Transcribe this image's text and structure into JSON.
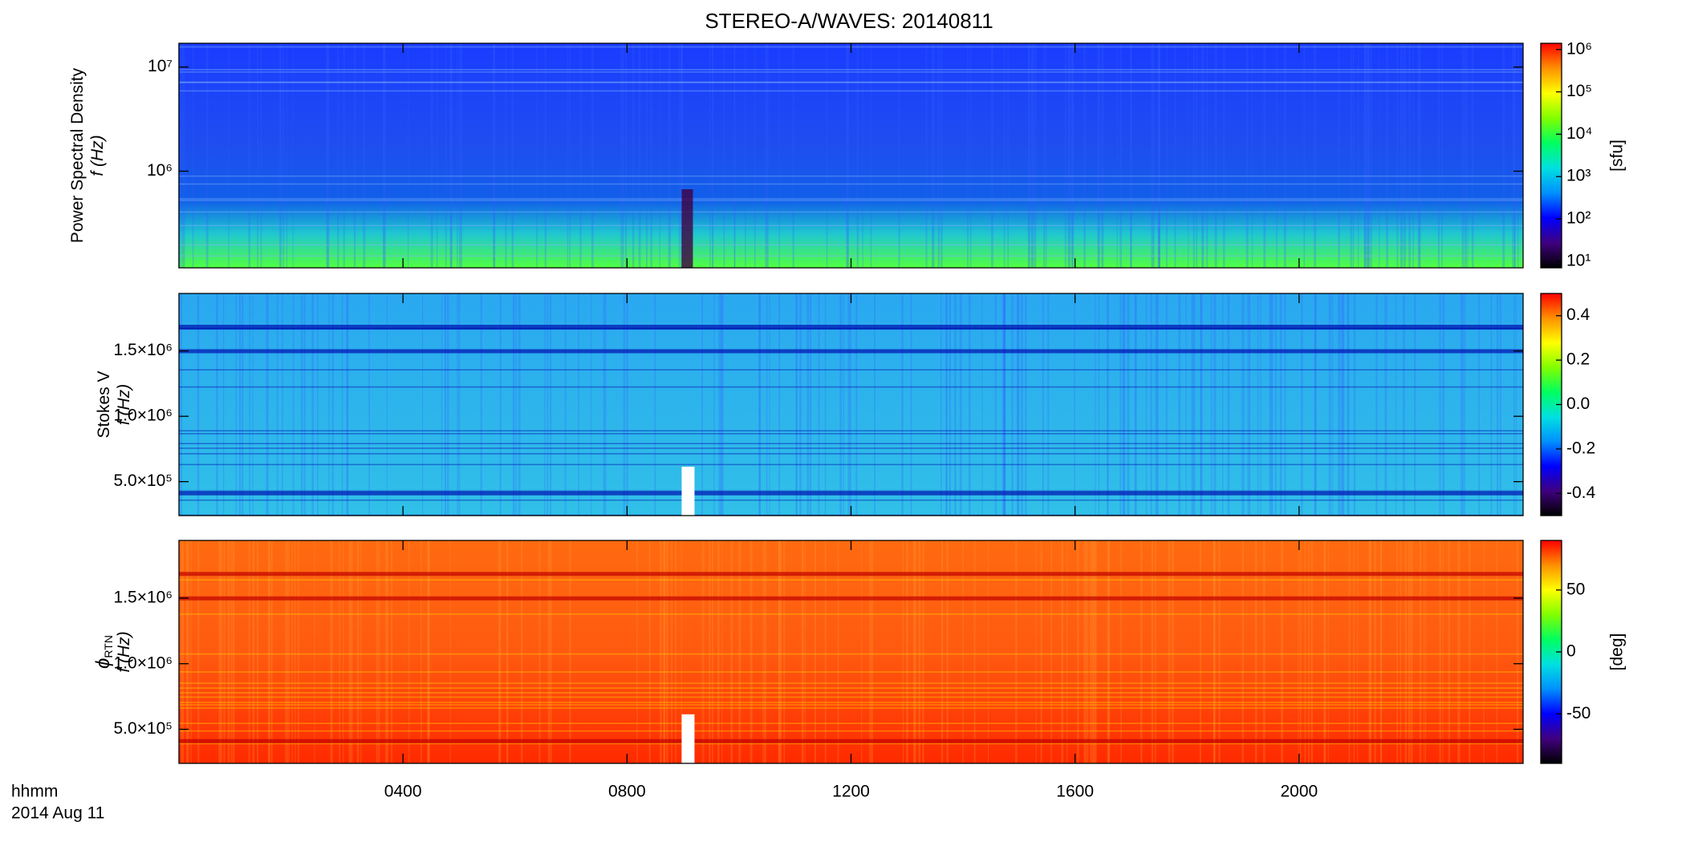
{
  "title": "STEREO-A/WAVES: 20140811",
  "x_axis": {
    "xlim": [
      0,
      24
    ],
    "xticks": [
      {
        "value": 4,
        "label": "0400"
      },
      {
        "value": 8,
        "label": "0800"
      },
      {
        "value": 12,
        "label": "1200"
      },
      {
        "value": 16,
        "label": "1600"
      },
      {
        "value": 20,
        "label": "2000"
      }
    ],
    "label": [
      "hhmm",
      "2014 Aug 11"
    ]
  },
  "chart_data": [
    {
      "type": "heatmap",
      "ylabel": [
        "Power Spectral Density",
        "f (Hz)"
      ],
      "yscale": "log",
      "ylim": [
        118000,
        16900000
      ],
      "yticks": [
        {
          "value": 1000000,
          "label": "10⁶"
        },
        {
          "value": 10000000,
          "label": "10⁷"
        }
      ],
      "colorbar": {
        "scale": "log",
        "lim": [
          7,
          1400000
        ],
        "ticks": [
          {
            "value": 10,
            "label": "10¹"
          },
          {
            "value": 100,
            "label": "10²"
          },
          {
            "value": 1000,
            "label": "10³"
          },
          {
            "value": 10000,
            "label": "10⁴"
          },
          {
            "value": 100000,
            "label": "10⁵"
          },
          {
            "value": 1000000,
            "label": "10⁶"
          }
        ],
        "label": "[sfu]",
        "colors": [
          "#000000",
          "#400080",
          "#0000ff",
          "#0090ff",
          "#00e0e0",
          "#00ff60",
          "#80ff00",
          "#ffff00",
          "#ff9000",
          "#ff0000"
        ]
      }
    },
    {
      "type": "heatmap",
      "ylabel": [
        "Stokes V",
        "f (Hz)"
      ],
      "yscale": "linear",
      "ylim": [
        240000,
        1940000
      ],
      "yticks": [
        {
          "value": 500000,
          "label": "5.0×10⁵"
        },
        {
          "value": 1000000,
          "label": "1.0×10⁶"
        },
        {
          "value": 1500000,
          "label": "1.5×10⁶"
        }
      ],
      "colorbar": {
        "scale": "linear",
        "lim": [
          -0.5,
          0.5
        ],
        "ticks": [
          -0.4,
          -0.2,
          {
            "value": 0,
            "label": "0.0"
          },
          0.2,
          0.4
        ],
        "colors": [
          "#000000",
          "#400080",
          "#0000ff",
          "#0090ff",
          "#00e0e0",
          "#00ff60",
          "#80ff00",
          "#ffff00",
          "#ff9000",
          "#ff0000"
        ]
      }
    },
    {
      "type": "heatmap",
      "ylabel": [
        "ϕ",
        "f (Hz)"
      ],
      "ylabel_subscript": "RTN",
      "yscale": "linear",
      "ylim": [
        240000,
        1940000
      ],
      "yticks": [
        {
          "value": 500000,
          "label": "5.0×10⁵"
        },
        {
          "value": 1000000,
          "label": "1.0×10⁶"
        },
        {
          "value": 1500000,
          "label": "1.5×10⁶"
        }
      ],
      "colorbar": {
        "scale": "linear",
        "lim": [
          -90,
          90
        ],
        "ticks": [
          -50,
          0,
          50
        ],
        "label": "[deg]",
        "colors": [
          "#000000",
          "#400080",
          "#0000ff",
          "#0090ff",
          "#00e0e0",
          "#00ff60",
          "#80ff00",
          "#ffff00",
          "#ff9000",
          "#ff0000"
        ]
      }
    }
  ]
}
